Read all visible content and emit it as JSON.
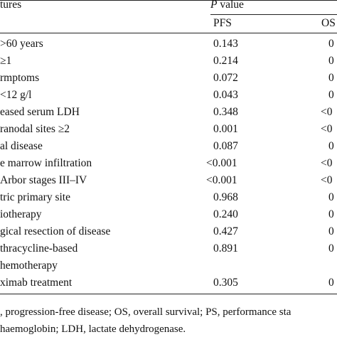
{
  "header": {
    "features": "tures",
    "p": "P",
    "value": "value",
    "pfs": "PFS",
    "os": "OS"
  },
  "rows": [
    {
      "label": ">60 years",
      "pfs": "0.143",
      "os": "0"
    },
    {
      "label": "≥1",
      "pfs": "0.214",
      "os": "0"
    },
    {
      "label": "rmptoms",
      "pfs": "0.072",
      "os": "0"
    },
    {
      "label": "<12 g/l",
      "pfs": "0.043",
      "os": "0"
    },
    {
      "label": "eased serum LDH",
      "pfs": "0.348",
      "os": "<0"
    },
    {
      "label": "ranodal sites ≥2",
      "pfs": "0.001",
      "os": "<0"
    },
    {
      "label": "al disease",
      "pfs": "0.087",
      "os": "0"
    },
    {
      "label": "e marrow infiltration",
      "pfs": "<0.001",
      "os": "<0"
    },
    {
      "label": "Arbor stages III–IV",
      "pfs": "<0.001",
      "os": "<0"
    },
    {
      "label": "tric primary site",
      "pfs": "0.968",
      "os": "0"
    },
    {
      "label": "iotherapy",
      "pfs": "0.240",
      "os": "0"
    },
    {
      "label": "gical resection of disease",
      "pfs": "0.427",
      "os": "0"
    },
    {
      "label": "thracycline-based",
      "pfs": "0.891",
      "os": "0"
    },
    {
      "label": "hemotherapy"
    },
    {
      "label": "ximab treatment",
      "pfs": "0.305",
      "os": "0"
    }
  ],
  "footer": [
    ", progression-free disease; OS, overall survival; PS, performance sta",
    "haemoglobin; LDH, lactate dehydrogenase."
  ]
}
